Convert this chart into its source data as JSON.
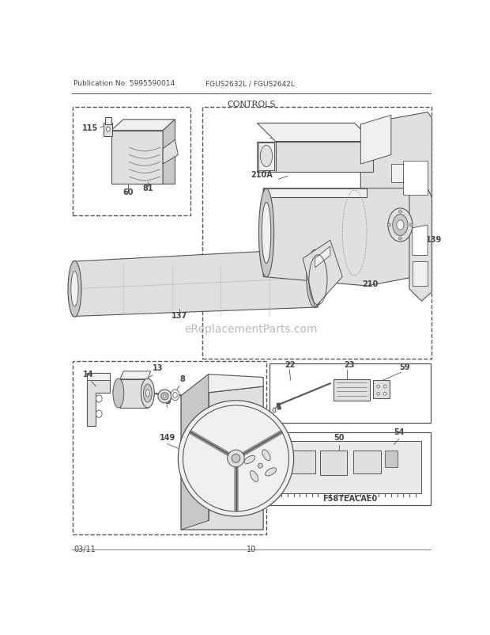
{
  "page_title": "CONTROLS",
  "pub_no": "Publication No: 5995590014",
  "model": "FGUS2632L / FGUS2642L",
  "date": "03/11",
  "page_num": "10",
  "watermark": "eReplacementParts.com",
  "bg_color": "#ffffff",
  "line_color": "#555555",
  "text_color": "#444444",
  "gray1": "#c8c8c8",
  "gray2": "#e0e0e0",
  "gray3": "#f0f0f0"
}
